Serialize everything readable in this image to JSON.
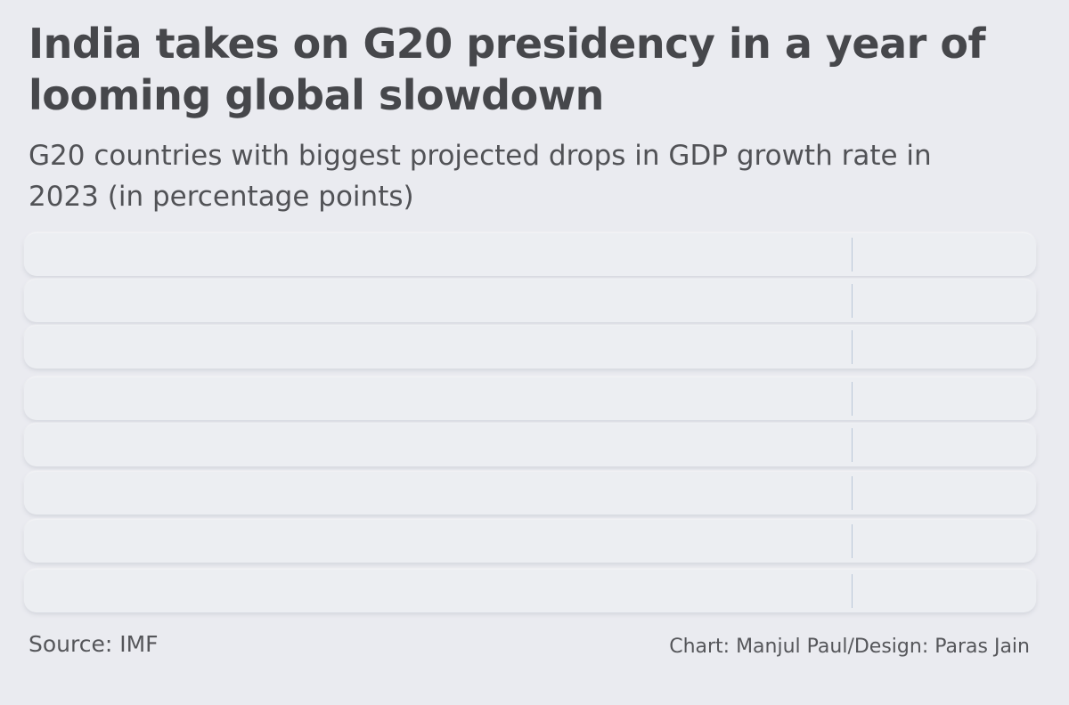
{
  "title": "India takes on G20 presidency in a year of looming global slowdown",
  "subtitle": "G20 countries with biggest projected drops in GDP growth rate in 2023 (in percentage points)",
  "source": "Source: IMF",
  "credit": "Chart: Manjul Paul/Design: Paras Jain",
  "chart_data": {
    "type": "bar",
    "orientation": "horizontal",
    "title": "G20 countries with biggest projected drops in GDP growth rate in 2023 (in percentage points)",
    "categories": [
      "",
      "",
      "",
      "",
      "",
      "",
      "",
      ""
    ],
    "values": [
      null,
      null,
      null,
      null,
      null,
      null,
      null,
      null
    ],
    "xlim": [
      null,
      0
    ],
    "grid": false,
    "legend": "none"
  }
}
